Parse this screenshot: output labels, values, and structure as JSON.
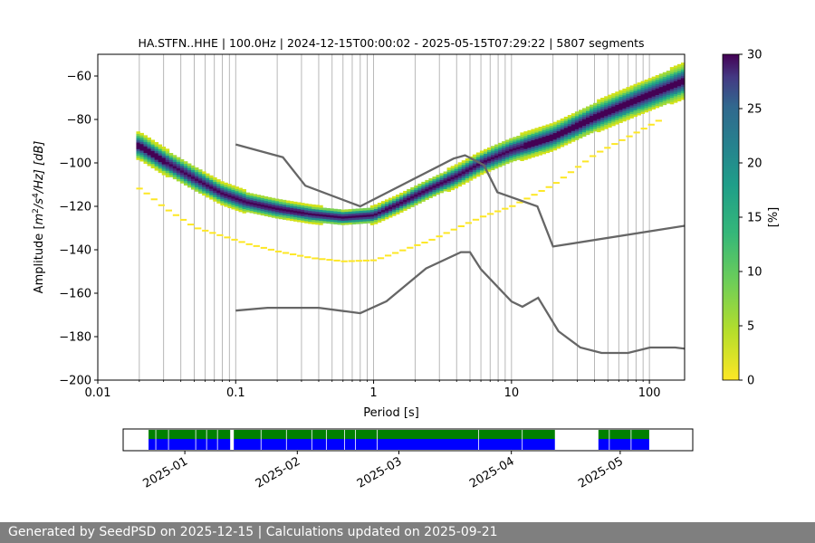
{
  "chart_data": {
    "type": "heatmap",
    "title": "HA.STFN..HHE | 100.0Hz | 2024-12-15T00:00:02 - 2025-05-15T07:29:22 | 5807 segments",
    "xlabel": "Period [s]",
    "ylabel_parts": {
      "pre": "Amplitude [",
      "m": "m",
      "m_exp": "2",
      "s": "/s",
      "s_exp": "4",
      "post": "/Hz] [dB]"
    },
    "x_scale": "log",
    "xlim": [
      0.01,
      180
    ],
    "ylim": [
      -200,
      -50
    ],
    "x_tick_labels": [
      "0.01",
      "0.1",
      "1",
      "10",
      "100"
    ],
    "x_tick_values": [
      0.01,
      0.1,
      1,
      10,
      100
    ],
    "y_ticks": [
      -60,
      -80,
      -100,
      -120,
      -140,
      -160,
      -180,
      -200
    ],
    "y_tick_labels": [
      "−60",
      "−80",
      "−100",
      "−120",
      "−140",
      "−160",
      "−180",
      "−200"
    ],
    "grid": "x-only",
    "colorbar": {
      "label": "[%]",
      "min": 0,
      "max": 30,
      "ticks": [
        0,
        5,
        10,
        15,
        20,
        25,
        30
      ],
      "colormap": "viridis_r"
    },
    "mode_curve": {
      "periods": [
        0.02,
        0.03,
        0.05,
        0.08,
        0.12,
        0.2,
        0.35,
        0.6,
        1.0,
        1.5,
        2.5,
        4,
        6,
        10,
        20,
        40,
        80,
        180
      ],
      "db": [
        -92,
        -99,
        -107,
        -114,
        -118,
        -121,
        -123.5,
        -125,
        -124,
        -119,
        -112,
        -106,
        -100,
        -94,
        -88,
        -79,
        -71,
        -62
      ]
    },
    "percentile_low": {
      "periods": [
        0.02,
        0.03,
        0.05,
        0.08,
        0.12,
        0.2,
        0.35,
        0.6,
        1.0,
        1.5,
        2.5,
        4,
        6,
        10,
        20,
        40,
        80,
        120
      ],
      "db": [
        -112,
        -121,
        -130,
        -134,
        -137.5,
        -141,
        -144,
        -145.5,
        -145,
        -141,
        -136,
        -130,
        -125,
        -120,
        -110,
        -96,
        -86,
        -80
      ]
    },
    "nhnm": {
      "periods": [
        0.1,
        0.22,
        0.32,
        0.8,
        3.8,
        4.6,
        6.3,
        7.9,
        15.4,
        20,
        354.8
      ],
      "db": [
        -91.5,
        -97.4,
        -110.5,
        -120.0,
        -98.0,
        -96.5,
        -101.0,
        -113.5,
        -120.0,
        -138.5,
        -126.0
      ]
    },
    "nlnm": {
      "periods": [
        0.1,
        0.17,
        0.4,
        0.8,
        1.24,
        2.4,
        4.3,
        5.0,
        6.0,
        10.0,
        12.0,
        15.6,
        21.9,
        31.6,
        45.0,
        70.0,
        101.0,
        154.0,
        328.0
      ],
      "db": [
        -168.0,
        -166.7,
        -166.7,
        -169.2,
        -163.7,
        -148.6,
        -141.1,
        -141.1,
        -149.0,
        -163.8,
        -166.2,
        -162.1,
        -177.5,
        -185.0,
        -187.5,
        -187.5,
        -185.0,
        -185.0,
        -187.5
      ]
    },
    "availability": {
      "date_labels": [
        "2025-01",
        "2025-02",
        "2025-03",
        "2025-04",
        "2025-05"
      ],
      "day_offsets_of_labels": [
        17,
        48,
        76,
        107,
        137
      ],
      "total_days": 157,
      "segments_days": [
        [
          7,
          29.5
        ],
        [
          30.5,
          119
        ],
        [
          131,
          145
        ]
      ],
      "processed_days": [
        [
          7,
          29.5
        ],
        [
          30.5,
          119
        ],
        [
          131,
          145
        ]
      ],
      "colors": {
        "data": "#008000",
        "processed": "#0000ff",
        "gap": "#ffffff"
      }
    }
  },
  "footer": {
    "text": "Generated by SeedPSD on 2025-12-15 | Calculations updated on 2025-09-21",
    "bg": "#7f7f7f"
  }
}
